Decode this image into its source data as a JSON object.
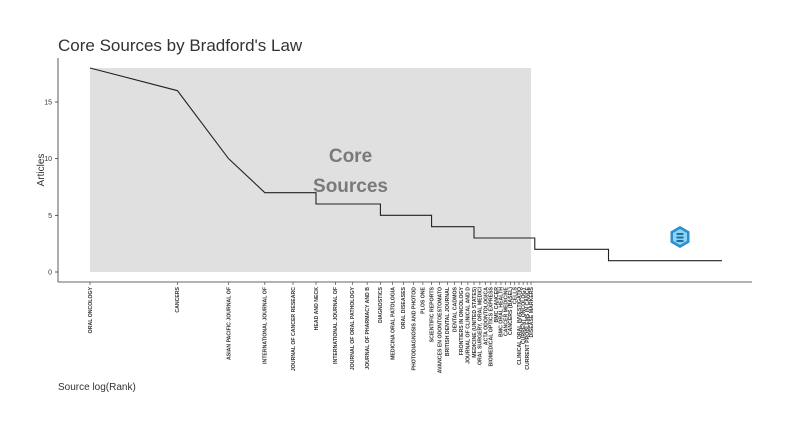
{
  "chart_data": {
    "type": "line",
    "title": "Core Sources by Bradford's Law",
    "xlabel": "Source log(Rank)",
    "ylabel": "Articles",
    "ylim": [
      0,
      18
    ],
    "yticks": [
      0,
      5,
      10,
      15
    ],
    "grid": false,
    "x_scale": "log",
    "core_zone_label": [
      "Core",
      "Sources"
    ],
    "core_zone_ranks": [
      1,
      33
    ],
    "sources": [
      {
        "rank": 1,
        "name": "ORAL ONCOLOGY",
        "articles": 18
      },
      {
        "rank": 2,
        "name": "CANCERS",
        "articles": 16
      },
      {
        "rank": 3,
        "name": "ASIAN PACIFIC JOURNAL OF",
        "articles": 10
      },
      {
        "rank": 4,
        "name": "INTERNATIONAL JOURNAL OF",
        "articles": 7
      },
      {
        "rank": 5,
        "name": "JOURNAL OF CANCER RESEARC",
        "articles": 7
      },
      {
        "rank": 6,
        "name": "HEAD AND NECK",
        "articles": 6
      },
      {
        "rank": 7,
        "name": "INTERNATIONAL JOURNAL OF",
        "articles": 6
      },
      {
        "rank": 8,
        "name": "JOURNAL OF ORAL PATHOLOGY",
        "articles": 6
      },
      {
        "rank": 9,
        "name": "JOURNAL OF PHARMACY AND B",
        "articles": 6
      },
      {
        "rank": 10,
        "name": "DIAGNOSTICS",
        "articles": 5
      },
      {
        "rank": 11,
        "name": "MEDICINA ORAL PATOLOGIA",
        "articles": 5
      },
      {
        "rank": 12,
        "name": "ORAL DISEASES",
        "articles": 5
      },
      {
        "rank": 13,
        "name": "PHOTODIAGNOSIS AND PHOTOD",
        "articles": 5
      },
      {
        "rank": 14,
        "name": "PLOS ONE",
        "articles": 5
      },
      {
        "rank": 15,
        "name": "SCIENTIFIC REPORTS",
        "articles": 4
      },
      {
        "rank": 16,
        "name": "AVANCES EN ODONTOESTOMATO",
        "articles": 4
      },
      {
        "rank": 17,
        "name": "BRITISH DENTAL JOURNAL",
        "articles": 4
      },
      {
        "rank": 18,
        "name": "DENTAL CADMOS",
        "articles": 4
      },
      {
        "rank": 19,
        "name": "FRONTIERS IN ONCOLOGY",
        "articles": 4
      },
      {
        "rank": 20,
        "name": "JOURNAL OF CLINICAL AND D",
        "articles": 4
      },
      {
        "rank": 21,
        "name": "MEDICINE (UNITED STATES)",
        "articles": 3
      },
      {
        "rank": 22,
        "name": "ORAL SURGERY, ORAL MEDICI",
        "articles": 3
      },
      {
        "rank": 23,
        "name": "ACTA ODONTOLOGICA",
        "articles": 3
      },
      {
        "rank": 24,
        "name": "BIOMEDICAL OPTICS EXPRESS",
        "articles": 3
      },
      {
        "rank": 25,
        "name": "BMC CANCER",
        "articles": 3
      },
      {
        "rank": 26,
        "name": "BMC ORAL HEALTH",
        "articles": 3
      },
      {
        "rank": 27,
        "name": "CANCER MEDICINE",
        "articles": 3
      },
      {
        "rank": 28,
        "name": "CANCERS (BASEL)",
        "articles": 3
      },
      {
        "rank": 29,
        "name": "CELLS",
        "articles": 3
      },
      {
        "rank": 30,
        "name": "CLINICAL ORAL INVESTIGATIO",
        "articles": 3
      },
      {
        "rank": 31,
        "name": "CURRENT ONCOLOGY",
        "articles": 3
      },
      {
        "rank": 32,
        "name": "CURRENT PROBLEMS IN CANCE",
        "articles": 3
      },
      {
        "rank": 33,
        "name": "DISEASE MARKERS",
        "articles": 3
      }
    ],
    "tail": [
      {
        "from_rank": 34,
        "to_rank": 60,
        "articles": 2
      },
      {
        "from_rank": 61,
        "to_rank": 150,
        "articles": 1
      }
    ]
  },
  "logo": {
    "name": "bibliometrix-hexagon-icon",
    "color": "#2a8fd0",
    "light": "#8fd3f4"
  }
}
